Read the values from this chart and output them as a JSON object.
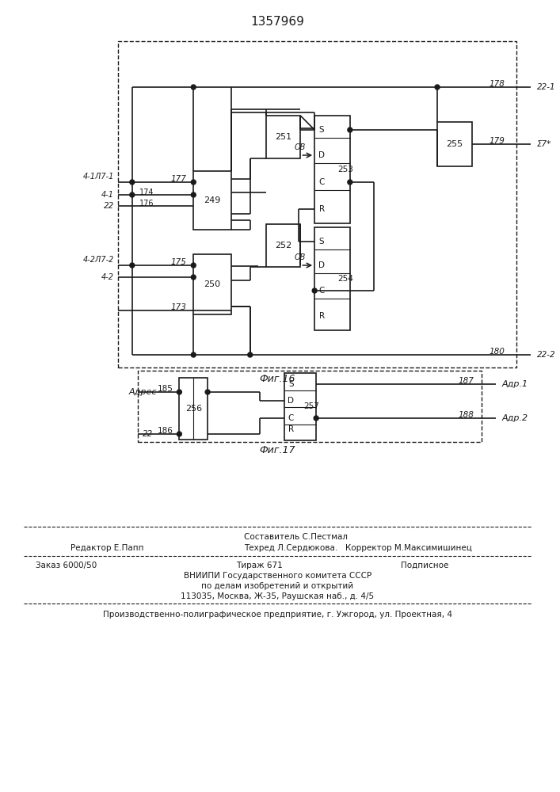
{
  "title": "1357969",
  "fig16_label": "Фиг.16",
  "fig17_label": "Фиг.17",
  "bg": "#ffffff",
  "lc": "#1a1a1a",
  "footer_editor": "Редактор Е.Папп",
  "footer_comp": "Составитель С.Пестмал",
  "footer_tech": "Техред Л.Сердюкова.   Корректор М.Максимишинец",
  "footer_zak": "Заказ 6000/50",
  "footer_tir": "Тираж 671",
  "footer_pod": "Подписное",
  "footer_vn1": "ВНИИПИ Государственного комитета СССР",
  "footer_vn2": "по делам изобретений и открытий",
  "footer_vn3": "113035, Москва, Ж-35, Раушская наб., д. 4/5",
  "footer_prod": "Производственно-полиграфическое предприятие, г. Ужгород, ул. Проектная, 4"
}
